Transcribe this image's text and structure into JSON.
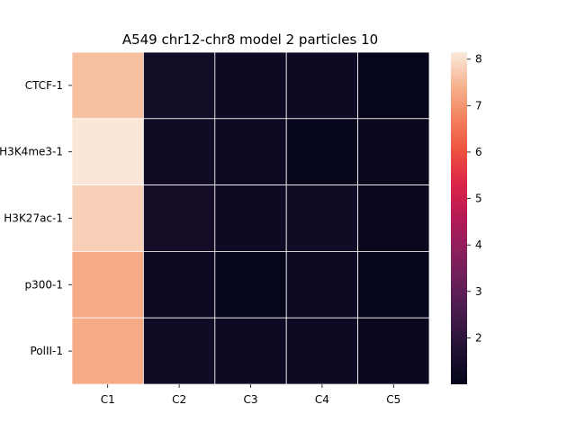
{
  "chart_data": {
    "type": "heatmap",
    "title": "A549 chr12-chr8 model 2 particles 10",
    "xlabel": "",
    "ylabel": "",
    "x_categories": [
      "C1",
      "C2",
      "C3",
      "C4",
      "C5"
    ],
    "y_categories": [
      "CTCF-1",
      "H3K4me3-1",
      "H3K27ac-1",
      "p300-1",
      "PolII-1"
    ],
    "values": [
      [
        7.6,
        1.4,
        1.3,
        1.3,
        1.05
      ],
      [
        8.1,
        1.35,
        1.25,
        1.1,
        1.2
      ],
      [
        7.8,
        1.45,
        1.3,
        1.35,
        1.15
      ],
      [
        7.3,
        1.25,
        1.05,
        1.3,
        1.1
      ],
      [
        7.3,
        1.35,
        1.3,
        1.3,
        1.2
      ]
    ],
    "colorbar": {
      "min": 1.0,
      "max": 8.15,
      "ticks": [
        "2",
        "3",
        "4",
        "5",
        "6",
        "7",
        "8"
      ],
      "tick_values": [
        2,
        3,
        4,
        5,
        6,
        7,
        8
      ],
      "colormap": "rocket"
    },
    "grid": true,
    "cell_line_color": "#ffffff"
  }
}
